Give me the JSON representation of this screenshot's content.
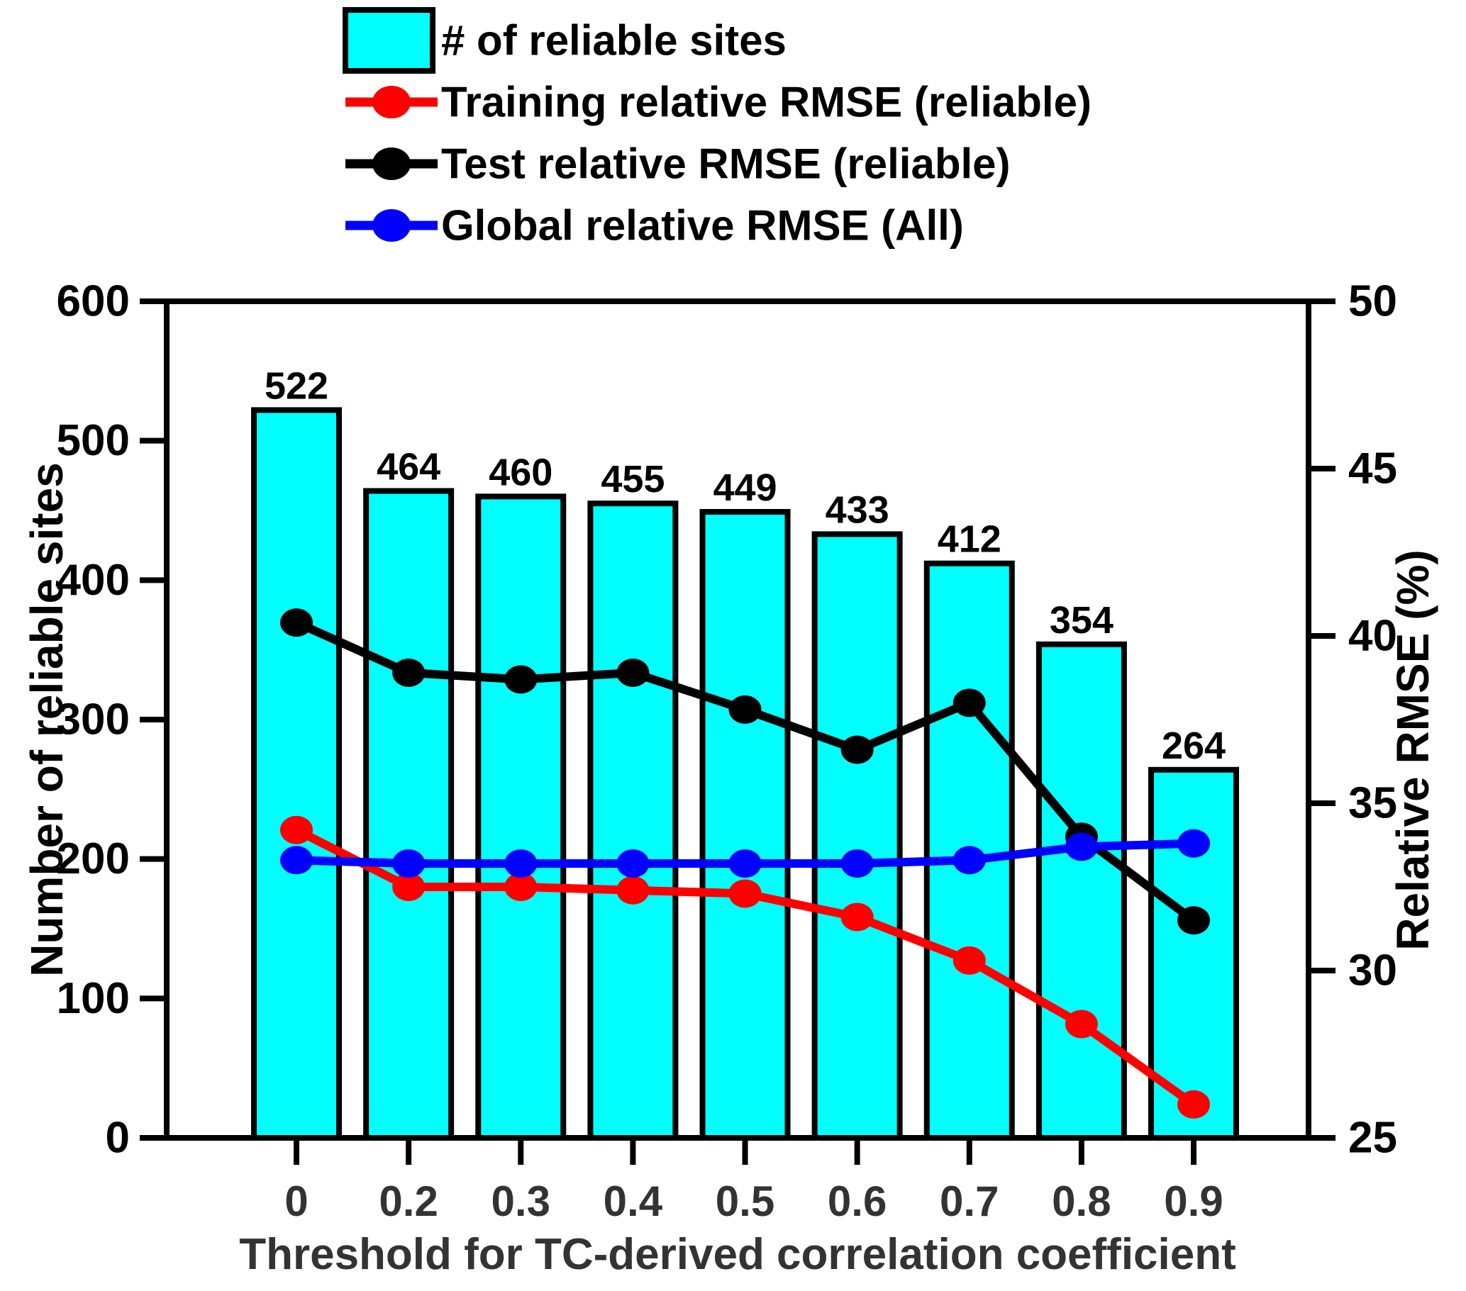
{
  "chart_data": {
    "type": "bar+line",
    "title": "",
    "categories": [
      "0",
      "0.2",
      "0.3",
      "0.4",
      "0.5",
      "0.6",
      "0.7",
      "0.8",
      "0.9"
    ],
    "bar_series": {
      "name": "# of reliable sites",
      "color": "#00ffff",
      "edge_color": "#000000",
      "axis": "left",
      "values": [
        522,
        464,
        460,
        455,
        449,
        433,
        412,
        354,
        264
      ],
      "value_labels": [
        "522",
        "464",
        "460",
        "455",
        "449",
        "433",
        "412",
        "354",
        "264"
      ]
    },
    "line_series": [
      {
        "name": "Training relative RMSE (reliable)",
        "color": "#ff0000",
        "axis": "right",
        "values": [
          34.2,
          32.5,
          32.5,
          32.4,
          32.3,
          31.6,
          30.3,
          28.4,
          26.0
        ]
      },
      {
        "name": "Test relative RMSE (reliable)",
        "color": "#000000",
        "axis": "right",
        "values": [
          40.4,
          38.9,
          38.7,
          38.9,
          37.8,
          36.6,
          38.0,
          34.0,
          31.5
        ]
      },
      {
        "name": "Global relative RMSE (All)",
        "color": "#0000ff",
        "axis": "right",
        "values": [
          33.3,
          33.2,
          33.2,
          33.2,
          33.2,
          33.2,
          33.3,
          33.7,
          33.8
        ]
      }
    ],
    "left_axis": {
      "label": "Number of reliable sites",
      "min": 0,
      "max": 600,
      "ticks": [
        "0",
        "100",
        "200",
        "300",
        "400",
        "500",
        "600"
      ]
    },
    "right_axis": {
      "label": "Relative RMSE (%)",
      "min": 25,
      "max": 50,
      "ticks": [
        "25",
        "30",
        "35",
        "40",
        "45",
        "50"
      ]
    },
    "x_axis": {
      "label": "Threshold for TC-derived correlation coefficient",
      "tick_label_color": "#333333"
    },
    "legend": [
      {
        "label": "# of reliable sites",
        "type": "bar-swatch",
        "color": "#00ffff"
      },
      {
        "label": "Training relative RMSE (reliable)",
        "type": "line-marker",
        "color": "#ff0000"
      },
      {
        "label": "Test relative RMSE (reliable)",
        "type": "line-marker",
        "color": "#000000"
      },
      {
        "label": "Global relative RMSE (All)",
        "type": "line-marker",
        "color": "#0000ff"
      }
    ],
    "layout": {
      "legend_position": "top-left",
      "grid": false,
      "background": "#ffffff",
      "axis_color": "#000000"
    }
  }
}
